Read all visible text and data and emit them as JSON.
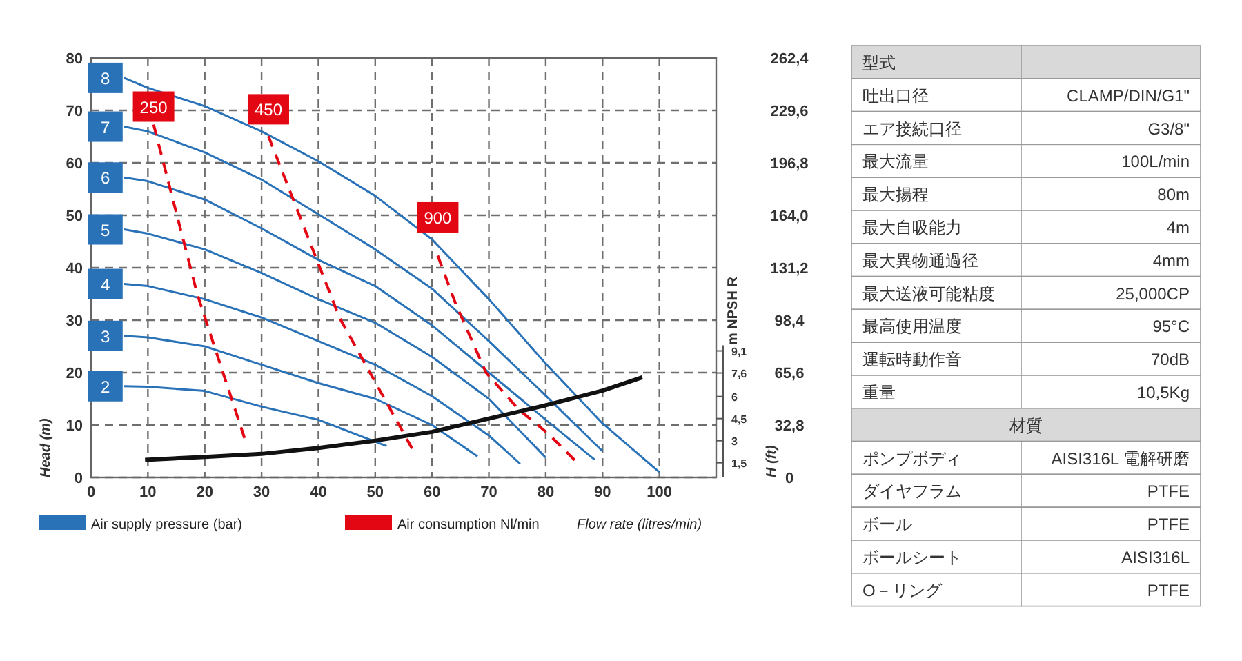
{
  "chart_data": [
    {
      "type": "line",
      "xlabel": "Flow rate (litres/min)",
      "ylabel": "Head (m)",
      "y2label": "H (ft)",
      "y3label": "m NPSH R",
      "xlim": [
        0,
        110
      ],
      "xticks": [
        0,
        10,
        20,
        30,
        40,
        50,
        60,
        70,
        80,
        90,
        100
      ],
      "ylim": [
        0,
        80
      ],
      "yticks": [
        0,
        10,
        20,
        30,
        40,
        50,
        60,
        70,
        80
      ],
      "y2lim": [
        0,
        262.4
      ],
      "y2ticks": [
        {
          "value": 262.4,
          "label": "262,4"
        },
        {
          "value": 229.6,
          "label": "229,6"
        },
        {
          "value": 196.8,
          "label": "196,8"
        },
        {
          "value": 164.0,
          "label": "164,0"
        },
        {
          "value": 131.2,
          "label": "131,2"
        },
        {
          "value": 98.4,
          "label": "98,4"
        },
        {
          "value": 65.6,
          "label": "65,6"
        },
        {
          "value": 32.8,
          "label": "32,8"
        },
        0
      ],
      "y3lim": [
        0.5,
        29
      ],
      "y3ticks": [
        {
          "value": 1.5,
          "label": "1,5"
        },
        3,
        {
          "value": 4.5,
          "label": "4,5"
        },
        6,
        {
          "value": 7.6,
          "label": "7,6"
        },
        {
          "value": 9.1,
          "label": "9,1"
        }
      ],
      "grid": true,
      "annotations": [
        "Air supply pressure (bar)",
        "Air consumption Nl/min"
      ],
      "series": [
        {
          "name": "8",
          "color": "#2a72b8",
          "x": [
            5.8,
            10,
            20,
            30,
            40,
            50,
            60,
            70,
            80,
            90,
            100
          ],
          "values": [
            76.2,
            74.3,
            70.8,
            66,
            60.3,
            53.7,
            45.4,
            34,
            21.7,
            10.3,
            1
          ]
        },
        {
          "name": "7",
          "color": "#2a72b8",
          "x": [
            5.8,
            10,
            20,
            30,
            40,
            50,
            60,
            70,
            80,
            90
          ],
          "values": [
            66.9,
            66,
            62,
            56.8,
            50.2,
            43.5,
            36,
            26,
            15.6,
            5
          ]
        },
        {
          "name": "6",
          "color": "#2a72b8",
          "x": [
            5.8,
            10,
            20,
            30,
            40,
            50,
            60,
            70,
            80,
            88.6
          ],
          "values": [
            57.2,
            56.5,
            53,
            47.5,
            41.5,
            36.5,
            29,
            20,
            11,
            3.4
          ]
        },
        {
          "name": "5",
          "color": "#2a72b8",
          "x": [
            5.8,
            10,
            20,
            30,
            40,
            50,
            60,
            70,
            80
          ],
          "values": [
            47.3,
            46.5,
            43.5,
            39,
            34,
            29.5,
            23,
            15,
            3.8
          ]
        },
        {
          "name": "4",
          "color": "#2a72b8",
          "x": [
            5.8,
            10,
            20,
            30,
            40,
            50,
            60,
            70,
            75.5
          ],
          "values": [
            36.9,
            36.5,
            34,
            30.5,
            26,
            21.5,
            15.5,
            8,
            2.6
          ]
        },
        {
          "name": "3",
          "color": "#2a72b8",
          "x": [
            5.8,
            10,
            20,
            30,
            40,
            50,
            60,
            68
          ],
          "values": [
            27,
            26.7,
            25,
            21.5,
            18,
            15,
            10,
            4
          ]
        },
        {
          "name": "2",
          "color": "#2a72b8",
          "x": [
            5.8,
            10,
            20,
            30,
            40,
            52
          ],
          "values": [
            17.4,
            17.3,
            16.5,
            13.5,
            11,
            6
          ]
        },
        {
          "name": "250",
          "color": "#e30613",
          "line_style": "dashed",
          "x": [
            11,
            18.7,
            27
          ],
          "values": [
            67.3,
            34.9,
            7.5
          ]
        },
        {
          "name": "450",
          "color": "#e30613",
          "line_style": "dashed",
          "x": [
            31.2,
            43.7,
            56.5
          ],
          "values": [
            65.1,
            30.5,
            5.5
          ]
        },
        {
          "name": "900",
          "color": "#e30613",
          "line_style": "dashed",
          "x": [
            61,
            64.2,
            69.5,
            75.2,
            80.5,
            85.1
          ],
          "values": [
            42.3,
            33,
            20,
            13,
            8.3,
            3.3
          ]
        },
        {
          "color": "#111111",
          "axis": "y3",
          "x": [
            9.5,
            20,
            30,
            40,
            50,
            60,
            70,
            80,
            90,
            97
          ],
          "values": [
            1.7,
            1.9,
            2.1,
            2.5,
            3.0,
            3.6,
            4.5,
            5.4,
            6.4,
            7.3
          ]
        }
      ]
    },
    {
      "type": "other",
      "categories": [
        "型式",
        "吐出口径",
        "エア接続口径",
        "最大流量",
        "最大揚程",
        "最大自吸能力",
        "最大異物通過径",
        "最大送液可能粘度",
        "最高使用温度",
        "運転時動作音",
        "重量"
      ],
      "value_labels": [
        null,
        "CLAMP/DIN/G1\"",
        "G3/8\"",
        "100L/min",
        "80m",
        "4m",
        "4mm",
        "25,000CP",
        "95°C",
        "70dB",
        "10,5Kg"
      ]
    },
    {
      "type": "other",
      "title": "材質",
      "categories": [
        "ポンプボディ",
        "ダイヤフラム",
        "ボール",
        "ボールシート",
        "O－リング"
      ],
      "value_labels": [
        "AISI316L 電解研磨",
        "PTFE",
        "PTFE",
        "AISI316L",
        "PTFE"
      ]
    }
  ]
}
